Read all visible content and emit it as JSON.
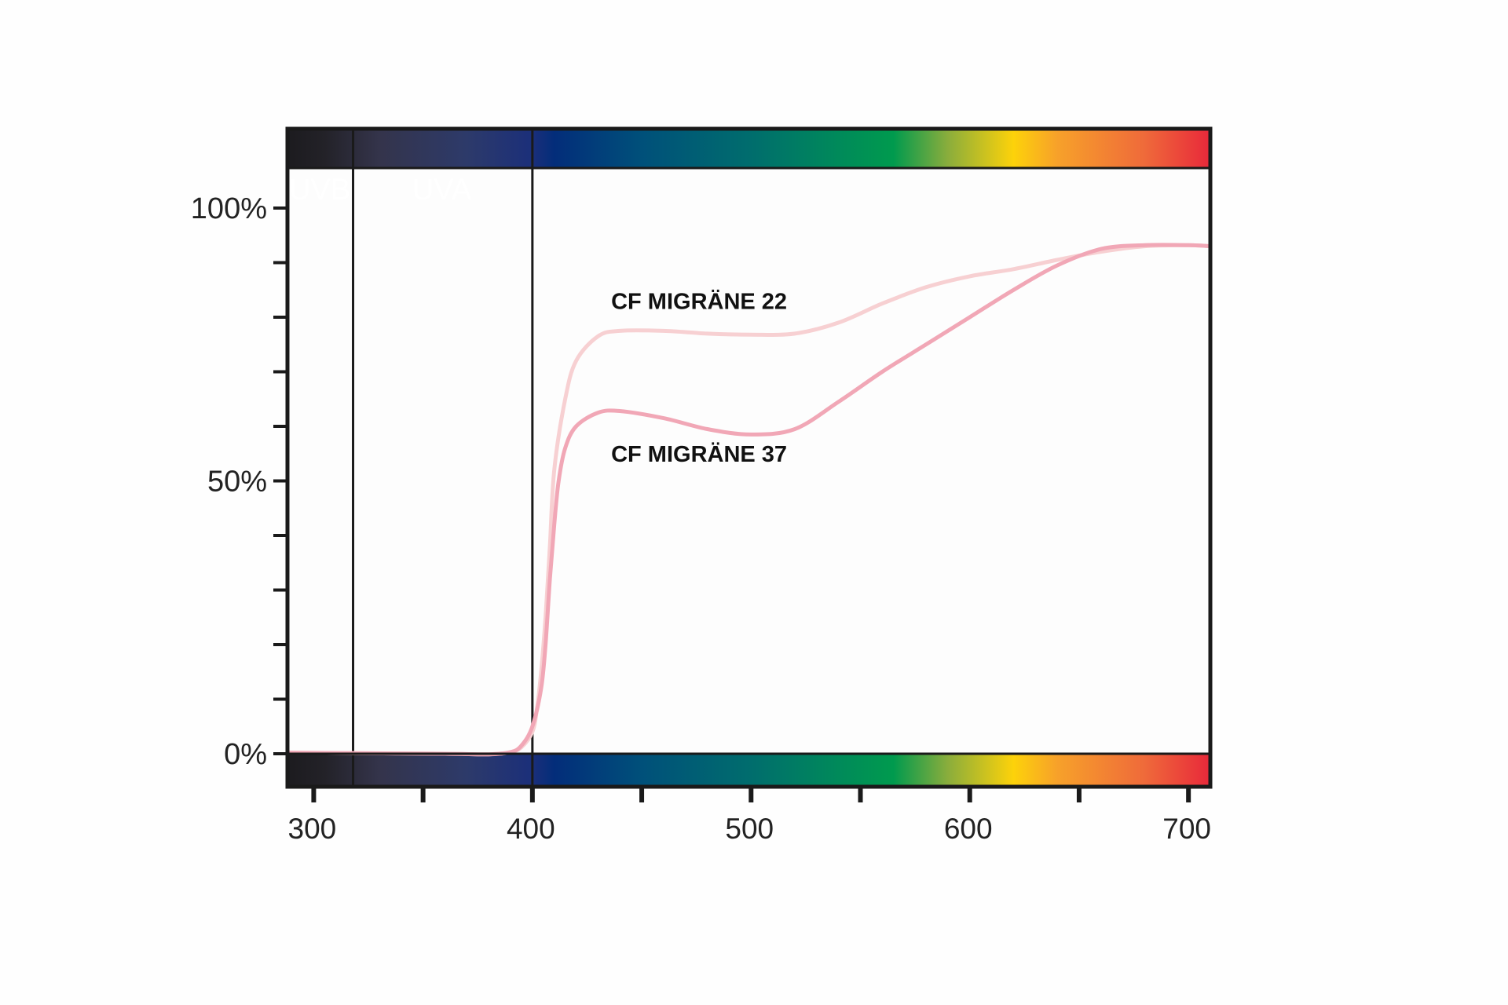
{
  "chart_data": {
    "type": "line",
    "title": "",
    "xlabel": "",
    "ylabel": "",
    "xlim": [
      288,
      710
    ],
    "ylim": [
      0,
      100
    ],
    "x_ticks": [
      {
        "value": 300,
        "label": "300"
      },
      {
        "value": 400,
        "label": "400"
      },
      {
        "value": 500,
        "label": "500"
      },
      {
        "value": 600,
        "label": "600"
      },
      {
        "value": 700,
        "label": "700"
      }
    ],
    "x_minor_ticks": [
      350,
      450,
      550,
      650
    ],
    "y_ticks": [
      {
        "value": 0,
        "label": "0%"
      },
      {
        "value": 50,
        "label": "50%"
      },
      {
        "value": 100,
        "label": "100%"
      }
    ],
    "y_minor_ticks": [
      10,
      20,
      30,
      40,
      60,
      70,
      80,
      90
    ],
    "bands": [
      {
        "label": "UVB",
        "from": 288,
        "to": 318
      },
      {
        "label": "UVA",
        "from": 318,
        "to": 400
      }
    ],
    "spectrum_colors": [
      {
        "at": 288,
        "color": "#1c1b1f"
      },
      {
        "at": 305,
        "color": "#232228"
      },
      {
        "at": 330,
        "color": "#34344b"
      },
      {
        "at": 370,
        "color": "#2d3a6a"
      },
      {
        "at": 400,
        "color": "#1b2f7a"
      },
      {
        "at": 410,
        "color": "#032d7a"
      },
      {
        "at": 450,
        "color": "#00507a"
      },
      {
        "at": 500,
        "color": "#006d6d"
      },
      {
        "at": 540,
        "color": "#008a5a"
      },
      {
        "at": 565,
        "color": "#009a4e"
      },
      {
        "at": 590,
        "color": "#8aad3c"
      },
      {
        "at": 620,
        "color": "#fdd20a"
      },
      {
        "at": 640,
        "color": "#f7a12a"
      },
      {
        "at": 680,
        "color": "#ef6a3a"
      },
      {
        "at": 710,
        "color": "#e8283a"
      }
    ],
    "series": [
      {
        "name": "CF MIGRÄNE 22",
        "color": "#f7d0d2",
        "x": [
          288,
          320,
          360,
          380,
          390,
          395,
          400,
          402,
          404,
          406,
          408,
          410,
          415,
          420,
          430,
          440,
          460,
          480,
          500,
          520,
          540,
          560,
          580,
          600,
          620,
          640,
          660,
          680,
          700,
          710
        ],
        "y": [
          0.2,
          0.1,
          0.0,
          -0.1,
          0.3,
          1.2,
          4.0,
          8,
          15,
          25,
          38,
          52,
          65,
          72,
          76.5,
          77.5,
          77.5,
          77.0,
          76.8,
          77.0,
          79.0,
          82.5,
          85.5,
          87.5,
          88.8,
          90.5,
          92.0,
          93.0,
          93.2,
          93.0
        ]
      },
      {
        "name": "CF MIGRÄNE 37",
        "color": "#f1a7b6",
        "x": [
          288,
          320,
          360,
          380,
          390,
          395,
          400,
          404,
          406,
          408,
          410,
          412,
          415,
          420,
          430,
          440,
          460,
          480,
          500,
          520,
          540,
          560,
          580,
          600,
          620,
          640,
          660,
          680,
          700,
          710
        ],
        "y": [
          0.2,
          0.1,
          0.0,
          -0.1,
          0.3,
          1.5,
          5.0,
          12,
          20,
          32,
          42,
          50,
          56,
          60,
          62.5,
          62.8,
          61.5,
          59.5,
          58.5,
          59.5,
          64.5,
          70.0,
          75.0,
          80.0,
          85.0,
          89.5,
          92.5,
          93.2,
          93.2,
          93.0
        ]
      }
    ],
    "annotations": [
      {
        "text": "CF MIGRÄNE 22",
        "x": 436,
        "y": 81.5
      },
      {
        "text": "CF MIGRÄNE 37",
        "x": 436,
        "y": 53.5
      }
    ]
  }
}
